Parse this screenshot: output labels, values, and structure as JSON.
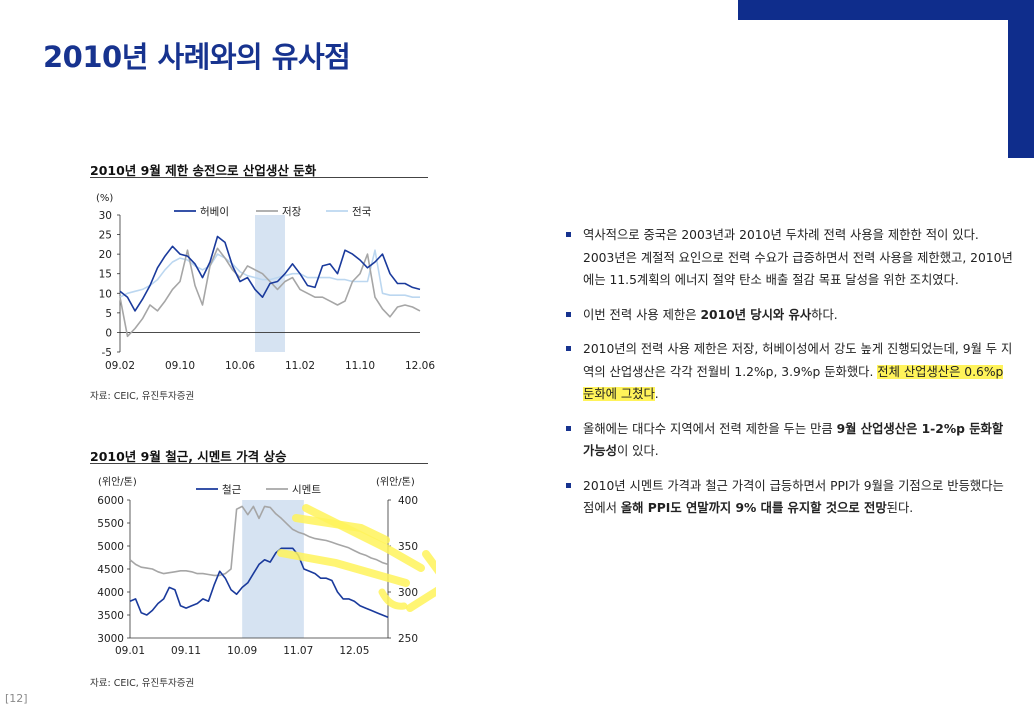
{
  "page": {
    "title": "2010년 사례와의 유사점",
    "page_number": "[12]",
    "accent_color": "#0f2d8c",
    "highlight_color": "#fff35a"
  },
  "charts": {
    "chart1": {
      "title": "2010년 9월 제한 송전으로 산업생산 둔화",
      "source": "자료: CEIC, 유진투자증권"
    },
    "chart2": {
      "title": "2010년 9월 철근, 시멘트 가격 상승",
      "source": "자료: CEIC, 유진투자증권"
    }
  },
  "chart_data": [
    {
      "type": "line",
      "title": "2010년 9월 제한 송전으로 산업생산 둔화",
      "ylabel": "(%)",
      "ylim": [
        -5,
        30
      ],
      "yticks": [
        "30",
        "25",
        "20",
        "15",
        "10",
        "5",
        "0",
        "-5"
      ],
      "xtick_labels": [
        "09.02",
        "09.10",
        "10.06",
        "11.02",
        "11.10",
        "12.06"
      ],
      "x_range": [
        "2009-02",
        "2012-08"
      ],
      "shaded_period": [
        "2010-08",
        "2010-12"
      ],
      "legend": "top-center",
      "series": [
        {
          "name": "허베이",
          "color": "#1a3a9c",
          "values": [
            10.5,
            9,
            5.5,
            8.5,
            12,
            16.5,
            19.5,
            22,
            20,
            19.5,
            17.5,
            14,
            18,
            24.5,
            23,
            17,
            13,
            14,
            11,
            9,
            12.5,
            13,
            15,
            17.5,
            15,
            12,
            11.5,
            17,
            17.5,
            15,
            21,
            20,
            18.5,
            16.5,
            18,
            20,
            15,
            12.5,
            12.5,
            11.5,
            11
          ]
        },
        {
          "name": "저장",
          "color": "#a6a6a6",
          "values": [
            9,
            -1,
            1,
            3.5,
            7,
            5.5,
            8,
            11,
            13,
            21,
            12,
            7,
            17,
            21.5,
            19,
            16,
            14,
            17,
            16,
            15,
            13,
            11,
            13,
            14,
            11,
            10,
            9,
            9,
            8,
            7,
            8,
            13,
            15,
            20,
            9,
            6,
            4,
            6.5,
            7,
            6.5,
            5.5
          ]
        },
        {
          "name": "전국",
          "color": "#bcd7f0",
          "values": [
            9,
            10,
            10.5,
            11,
            12,
            13.5,
            16,
            18,
            19,
            18.5,
            17,
            16,
            17,
            20,
            19,
            17.5,
            15.5,
            14.5,
            14,
            13.5,
            13.5,
            14,
            14.5,
            15,
            15,
            14,
            14,
            14,
            14,
            13.5,
            13.5,
            13,
            13,
            13,
            21,
            10,
            9.5,
            9.5,
            9.5,
            9,
            9
          ]
        }
      ]
    },
    {
      "type": "line",
      "title": "2010년 9월 철근, 시멘트 가격 상승",
      "ylabel": "(위안/톤)",
      "ylabel_right": "(위안/톤)",
      "ylim": [
        3000,
        6000
      ],
      "ylim_right": [
        250,
        400
      ],
      "yticks": [
        "6000",
        "5500",
        "5000",
        "4500",
        "4000",
        "3500",
        "3000"
      ],
      "yticks_right": [
        "400",
        "350",
        "300",
        "250"
      ],
      "xtick_labels": [
        "09.01",
        "09.11",
        "10.09",
        "11.07",
        "12.05"
      ],
      "x_range": [
        "2009-01",
        "2012-11"
      ],
      "shaded_period": [
        "2010-09",
        "2011-08"
      ],
      "legend": "top-center",
      "series": [
        {
          "name": "철근",
          "axis": "left",
          "color": "#1a3a9c",
          "values": [
            3800,
            3850,
            3550,
            3500,
            3600,
            3750,
            3850,
            4100,
            4050,
            3700,
            3650,
            3700,
            3750,
            3850,
            3800,
            4150,
            4450,
            4300,
            4050,
            3950,
            4100,
            4200,
            4400,
            4600,
            4700,
            4650,
            4850,
            4950,
            4950,
            4950,
            4800,
            4500,
            4450,
            4400,
            4300,
            4300,
            4250,
            4000,
            3850,
            3850,
            3800,
            3700,
            3650,
            3600,
            3550,
            3500,
            3450
          ]
        },
        {
          "name": "시멘트",
          "axis": "right",
          "color": "#a6a6a6",
          "values": [
            335,
            330,
            327,
            326,
            325,
            322,
            320,
            321,
            322,
            323,
            323,
            322,
            320,
            320,
            319,
            318,
            318,
            320,
            325,
            390,
            393,
            384,
            393,
            380,
            393,
            392,
            385,
            380,
            374,
            368,
            365,
            363,
            360,
            358,
            357,
            356,
            354,
            352,
            350,
            348,
            345,
            342,
            340,
            337,
            335,
            332,
            330
          ]
        }
      ]
    }
  ],
  "bullets": [
    {
      "parts": [
        {
          "t": "역사적으로 중국은 2003년과 2010년 두차례 전력 사용을 제한한 적이 있다. 2003년은 계절적 요인으로 전력 수요가 급증하면서 전력 사용을 제한했고, 2010년에는 11.5계획의 에너지 절약 탄소 배출 절감 목표 달성을 위한 조치였다."
        }
      ]
    },
    {
      "parts": [
        {
          "t": "이번 전력 사용 제한은 "
        },
        {
          "t": "2010년 당시와 유사",
          "b": true
        },
        {
          "t": "하다."
        }
      ]
    },
    {
      "parts": [
        {
          "t": "2010년의 전력 사용 제한은 저장, 허베이성에서 강도 높게 진행되었는데, 9월 두 지역의 산업생산은 각각 전월비 1.2%p, 3.9%p 둔화했다. "
        },
        {
          "t": "전체 산업생산은 0.6%p 둔화에 그쳤다",
          "hl": true
        },
        {
          "t": "."
        }
      ]
    },
    {
      "parts": [
        {
          "t": "올해에는 대다수 지역에서 전력 제한을 두는 만큼 "
        },
        {
          "t": "9월 산업생산은 1-2%p 둔화할 가능성",
          "b": true
        },
        {
          "t": "이 있다."
        }
      ]
    },
    {
      "parts": [
        {
          "t": "2010년 시멘트 가격과 철근 가격이 급등하면서 PPI가 9월을 기점으로 반등했다는 점에서 "
        },
        {
          "t": "올해 PPI도 연말까지 9% 대를 유지할 것으로 전망",
          "b": true
        },
        {
          "t": "된다."
        }
      ]
    }
  ]
}
